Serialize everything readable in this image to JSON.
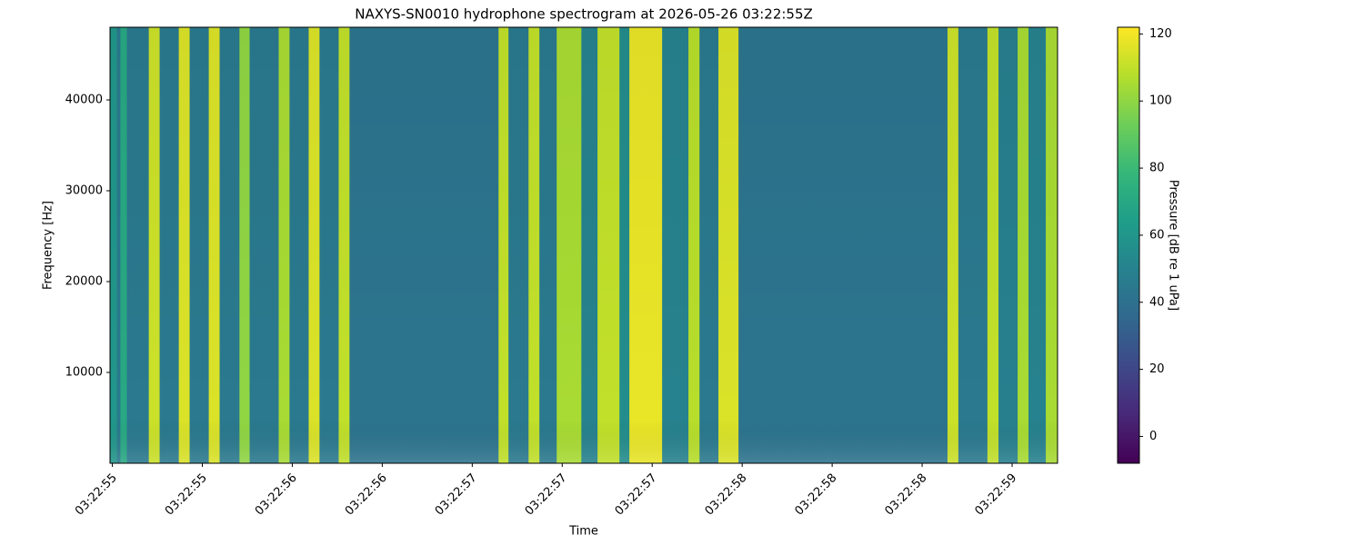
{
  "chart_data": {
    "type": "heatmap",
    "title": "NAXYS-SN0010 hydrophone spectrogram at 2026-05-26 03:22:55Z",
    "xlabel": "Time",
    "ylabel": "Frequency [Hz]",
    "colorbar_label": "Pressure [dB re 1 uPa]",
    "colormap": "viridis",
    "x": [
      55.44,
      55.47,
      55.485,
      55.513,
      55.608,
      55.655,
      55.738,
      55.785,
      55.868,
      55.915,
      56.001,
      56.045,
      56.171,
      56.218,
      56.301,
      56.348,
      56.431,
      56.478,
      57.124,
      57.167,
      57.254,
      57.301,
      57.376,
      57.483,
      57.553,
      57.648,
      57.691,
      57.833,
      57.947,
      57.995,
      58.077,
      58.164,
      59.07,
      59.117,
      59.243,
      59.291,
      59.374,
      59.421,
      59.496
    ],
    "values": [
      60,
      45,
      70,
      45,
      112,
      45,
      115,
      45,
      115,
      45,
      100,
      45,
      105,
      45,
      115,
      45,
      110,
      42,
      110,
      45,
      110,
      45,
      105,
      50,
      110,
      55,
      118,
      50,
      108,
      45,
      115,
      42,
      112,
      45,
      110,
      48,
      105,
      50,
      105
    ],
    "xlim": [
      55.44,
      59.547
    ],
    "xticks": [
      {
        "value": 55.45,
        "label": "03:22:55"
      },
      {
        "value": 55.84,
        "label": "03:22:55"
      },
      {
        "value": 56.23,
        "label": "03:22:56"
      },
      {
        "value": 56.62,
        "label": "03:22:56"
      },
      {
        "value": 57.01,
        "label": "03:22:57"
      },
      {
        "value": 57.4,
        "label": "03:22:57"
      },
      {
        "value": 57.79,
        "label": "03:22:57"
      },
      {
        "value": 58.18,
        "label": "03:22:58"
      },
      {
        "value": 58.57,
        "label": "03:22:58"
      },
      {
        "value": 58.96,
        "label": "03:22:58"
      },
      {
        "value": 59.35,
        "label": "03:22:59"
      }
    ],
    "ylim": [
      0,
      48000
    ],
    "yticks": [
      10000,
      20000,
      30000,
      40000
    ],
    "clim": [
      -8,
      122
    ],
    "cticks": [
      0,
      20,
      40,
      60,
      80,
      100,
      120
    ]
  }
}
